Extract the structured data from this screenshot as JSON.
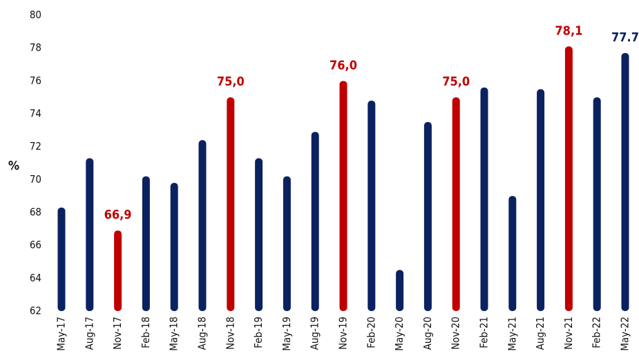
{
  "chart_data": {
    "type": "bar",
    "y_label": "%",
    "categories": [
      "May-17",
      "Aug-17",
      "Nov-17",
      "Feb-18",
      "May-18",
      "Aug-18",
      "Nov-18",
      "Feb-19",
      "May-19",
      "Aug-19",
      "Nov-19",
      "Feb-20",
      "May-20",
      "Aug-20",
      "Nov-20",
      "Feb-21",
      "May-21",
      "Aug-21",
      "Nov-21",
      "Feb-22",
      "May-22"
    ],
    "values": [
      68.3,
      71.3,
      66.9,
      70.2,
      69.8,
      72.4,
      75.0,
      71.3,
      70.2,
      72.9,
      76.0,
      74.8,
      64.5,
      73.5,
      75.0,
      75.6,
      69.0,
      75.5,
      78.1,
      75.0,
      77.7
    ],
    "value_labels": [
      null,
      null,
      "66,9",
      null,
      null,
      null,
      "75,0",
      null,
      null,
      null,
      "76,0",
      null,
      null,
      null,
      "75,0",
      null,
      null,
      null,
      "78,1",
      null,
      "77.7"
    ],
    "colors": [
      "#0b2260",
      "#0b2260",
      "#c00000",
      "#0b2260",
      "#0b2260",
      "#0b2260",
      "#c00000",
      "#0b2260",
      "#0b2260",
      "#0b2260",
      "#c00000",
      "#0b2260",
      "#0b2260",
      "#0b2260",
      "#c00000",
      "#0b2260",
      "#0b2260",
      "#0b2260",
      "#c00000",
      "#0b2260",
      "#0b2260"
    ],
    "ylim": [
      62,
      80
    ],
    "yticks": [
      62,
      64,
      66,
      68,
      70,
      72,
      74,
      76,
      78,
      80
    ],
    "grid": false
  }
}
